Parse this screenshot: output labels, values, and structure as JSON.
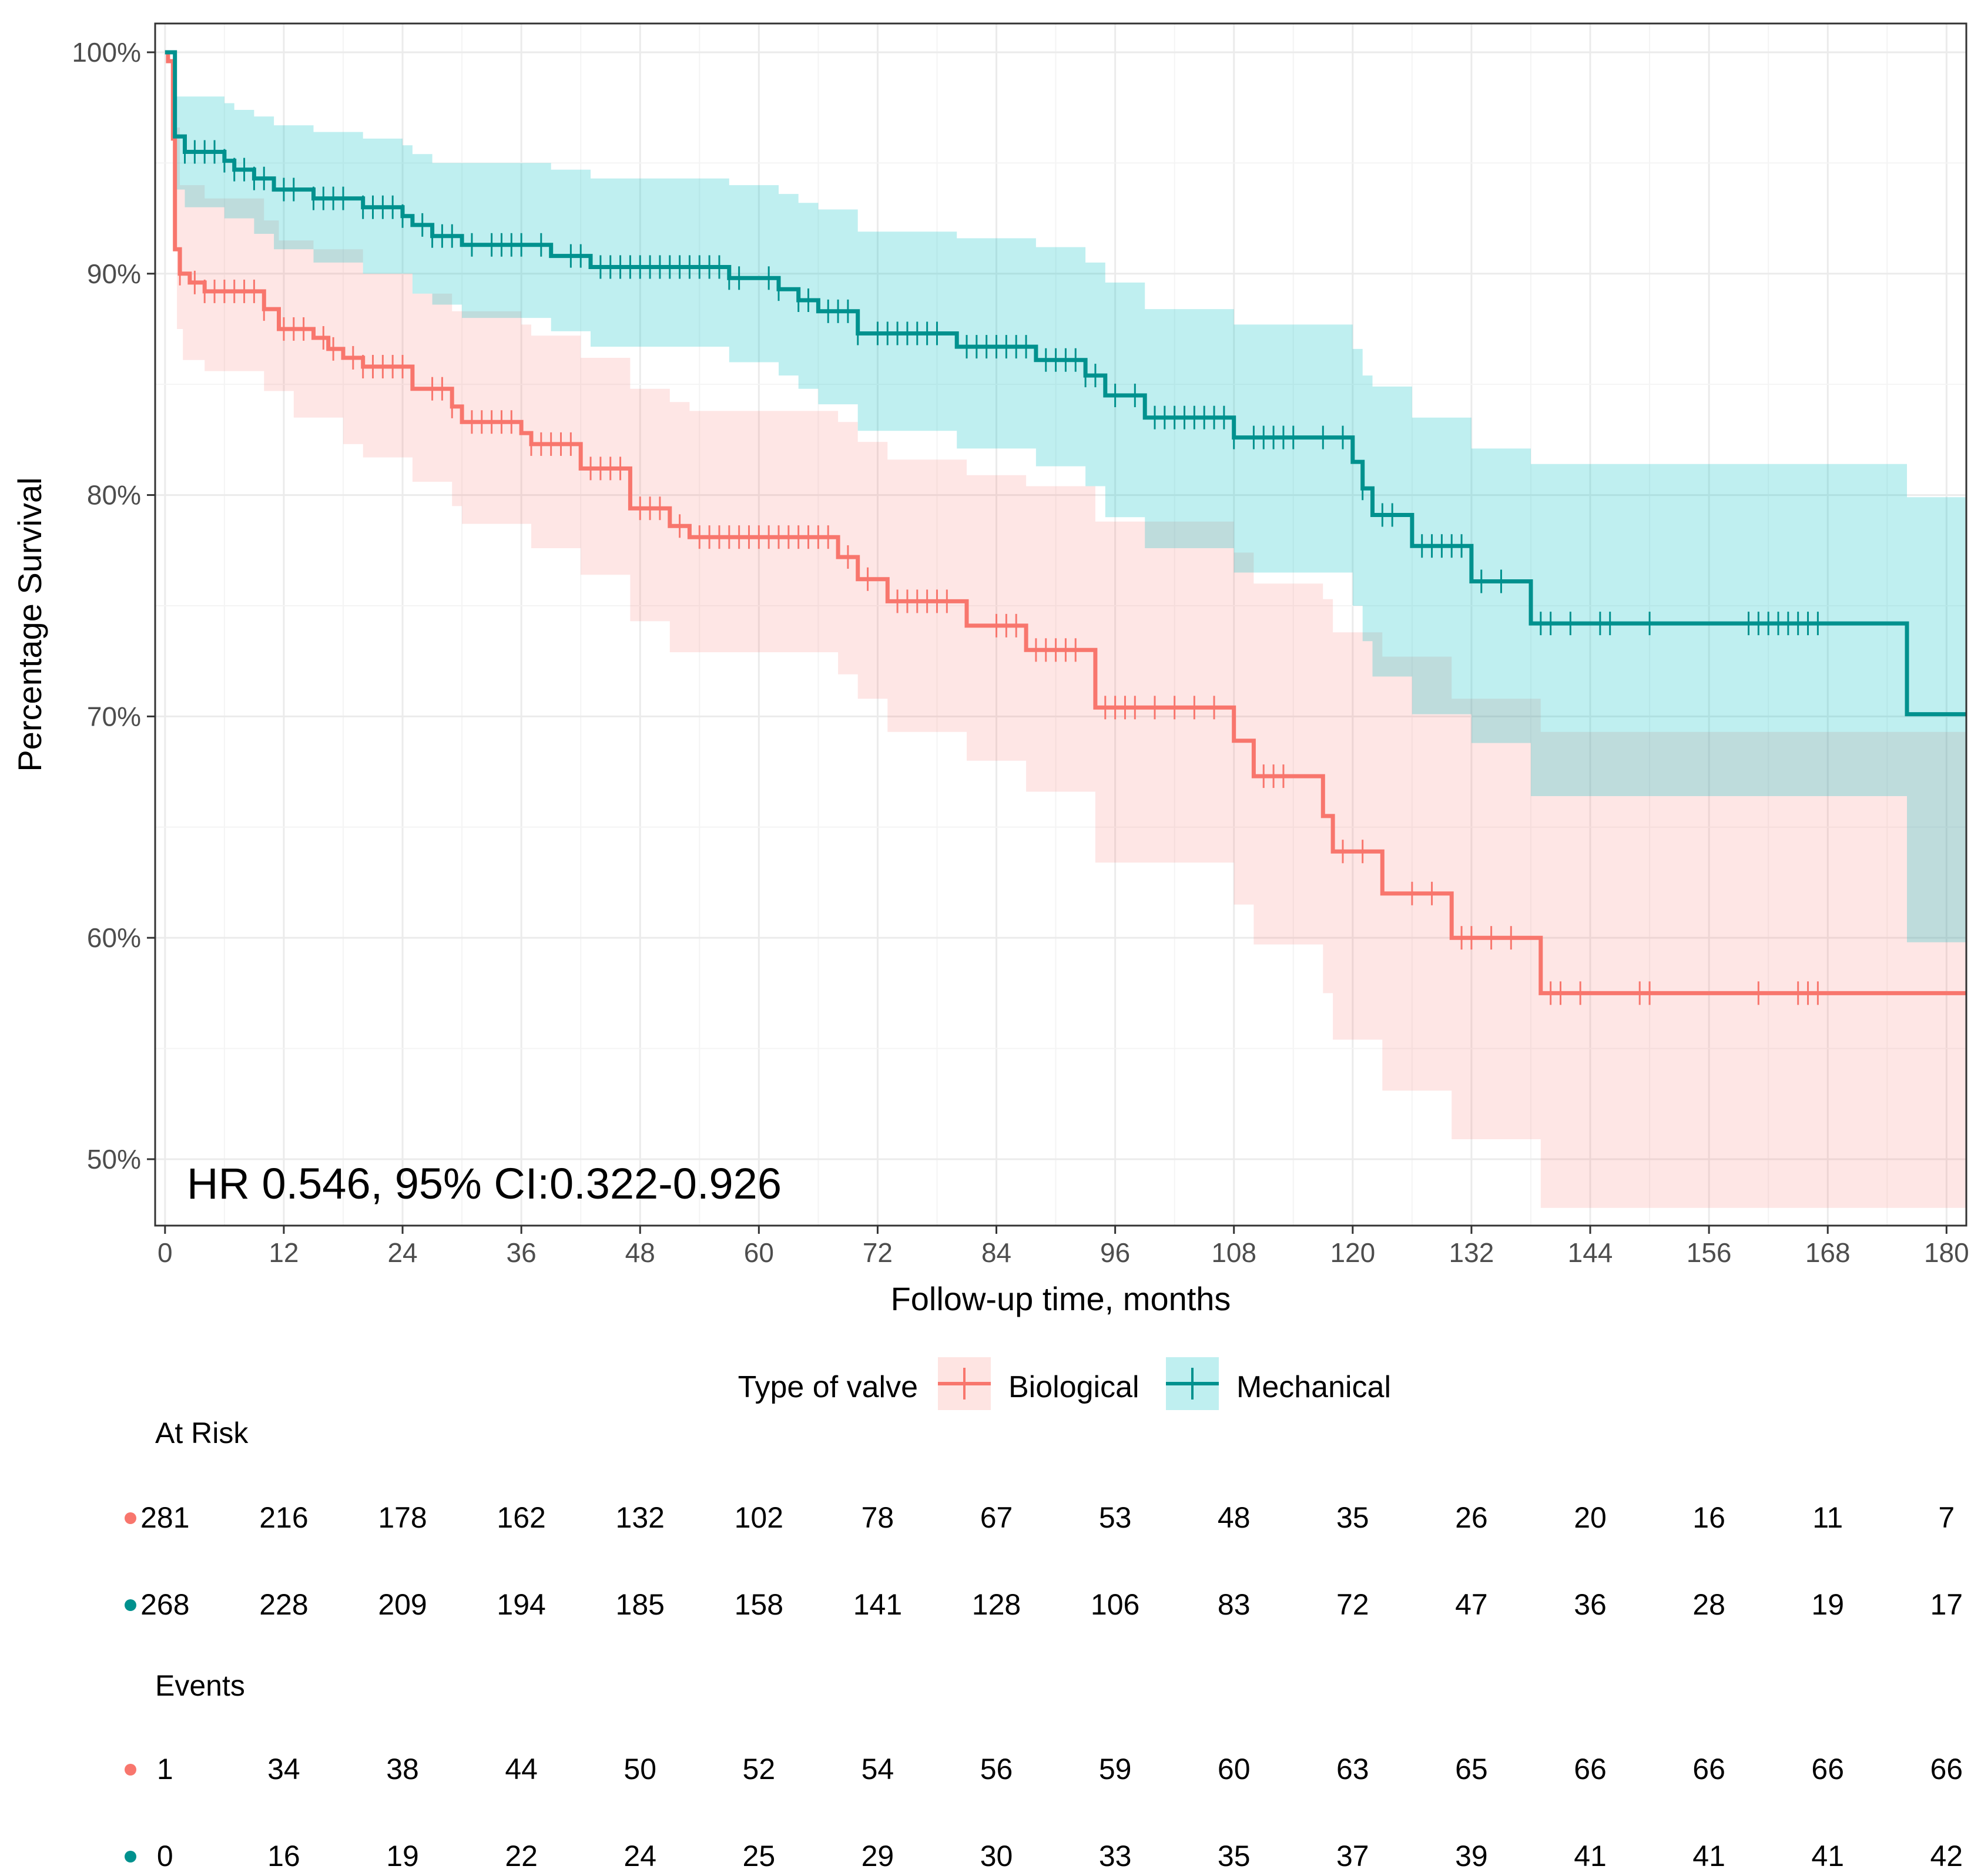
{
  "chart_data": {
    "type": "line",
    "subtype": "kaplan-meier survival curve with confidence bands",
    "xlabel": "Follow-up time, months",
    "ylabel": "Percentage Survival",
    "xlim": [
      -1,
      182
    ],
    "ylim": [
      47,
      101.3
    ],
    "x_ticks": [
      0,
      12,
      24,
      36,
      48,
      60,
      72,
      84,
      96,
      108,
      120,
      132,
      144,
      156,
      168,
      180
    ],
    "y_ticks": [
      50,
      60,
      70,
      80,
      90,
      100
    ],
    "y_tick_labels": [
      "50%",
      "60%",
      "70%",
      "80%",
      "90%",
      "100%"
    ],
    "grid": true,
    "annotation": "HR 0.546, 95% CI:0.322-0.926",
    "legend": {
      "title": "Type of valve",
      "position": "bottom"
    },
    "series": [
      {
        "name": "Biological",
        "color": "#F8766D",
        "band_color": "#F8766D",
        "steps": [
          [
            0,
            100
          ],
          [
            0.3,
            99.6
          ],
          [
            0.8,
            96.1
          ],
          [
            1,
            91.1
          ],
          [
            1.5,
            90.0
          ],
          [
            2.5,
            89.6
          ],
          [
            4,
            89.2
          ],
          [
            10,
            88.4
          ],
          [
            11.5,
            87.5
          ],
          [
            15,
            87.1
          ],
          [
            16.5,
            86.6
          ],
          [
            18,
            86.2
          ],
          [
            20,
            85.8
          ],
          [
            25,
            84.8
          ],
          [
            29,
            84.0
          ],
          [
            30,
            83.3
          ],
          [
            36,
            82.8
          ],
          [
            37,
            82.3
          ],
          [
            42,
            81.2
          ],
          [
            47,
            79.4
          ],
          [
            51,
            78.6
          ],
          [
            53,
            78.1
          ],
          [
            68,
            77.2
          ],
          [
            70,
            76.2
          ],
          [
            73,
            75.2
          ],
          [
            81,
            74.1
          ],
          [
            87,
            73.0
          ],
          [
            94,
            70.4
          ],
          [
            108,
            68.9
          ],
          [
            110,
            67.3
          ],
          [
            117,
            65.5
          ],
          [
            118,
            63.9
          ],
          [
            123,
            62.0
          ],
          [
            130,
            60.0
          ],
          [
            139,
            57.5
          ],
          [
            182,
            57.5
          ]
        ],
        "ci_lower": [
          [
            0,
            100
          ],
          [
            1,
            94.2
          ],
          [
            1.2,
            87.5
          ],
          [
            1.8,
            86.1
          ],
          [
            4,
            85.6
          ],
          [
            10,
            84.7
          ],
          [
            13,
            83.5
          ],
          [
            18,
            82.3
          ],
          [
            20,
            81.7
          ],
          [
            25,
            80.6
          ],
          [
            29,
            79.5
          ],
          [
            30,
            78.7
          ],
          [
            37,
            77.6
          ],
          [
            42,
            76.4
          ],
          [
            47,
            74.3
          ],
          [
            51,
            72.9
          ],
          [
            68,
            71.9
          ],
          [
            70,
            70.8
          ],
          [
            73,
            69.3
          ],
          [
            81,
            68.0
          ],
          [
            87,
            66.6
          ],
          [
            94,
            63.4
          ],
          [
            108,
            61.5
          ],
          [
            110,
            59.7
          ],
          [
            117,
            57.5
          ],
          [
            118,
            55.4
          ],
          [
            123,
            53.1
          ],
          [
            130,
            50.9
          ],
          [
            139,
            47.8
          ],
          [
            182,
            47.8
          ]
        ],
        "ci_upper": [
          [
            0,
            100
          ],
          [
            1,
            96.6
          ],
          [
            1.5,
            94.0
          ],
          [
            4,
            93.4
          ],
          [
            10,
            92.4
          ],
          [
            11.5,
            91.5
          ],
          [
            15,
            91.1
          ],
          [
            20,
            90.0
          ],
          [
            25,
            89.1
          ],
          [
            29,
            88.3
          ],
          [
            36,
            87.7
          ],
          [
            37,
            87.2
          ],
          [
            42,
            86.2
          ],
          [
            47,
            84.8
          ],
          [
            51,
            84.2
          ],
          [
            53,
            83.8
          ],
          [
            68,
            83.3
          ],
          [
            70,
            82.4
          ],
          [
            73,
            81.6
          ],
          [
            81,
            80.9
          ],
          [
            87,
            80.4
          ],
          [
            94,
            78.8
          ],
          [
            108,
            77.4
          ],
          [
            110,
            76.0
          ],
          [
            117,
            75.3
          ],
          [
            118,
            73.8
          ],
          [
            123,
            72.7
          ],
          [
            130,
            70.8
          ],
          [
            139,
            69.3
          ],
          [
            182,
            69.3
          ]
        ],
        "censor_times": [
          1.5,
          3,
          4,
          5,
          6,
          7,
          8,
          9,
          10,
          12,
          13,
          14,
          16,
          17,
          19,
          20,
          21,
          22,
          23,
          24,
          27,
          28,
          29,
          31,
          32,
          33,
          34,
          35,
          37,
          38,
          39,
          40,
          41,
          43,
          44,
          45,
          46,
          48,
          49,
          50,
          52,
          54,
          55,
          56,
          57,
          58,
          59,
          60,
          61,
          62,
          63,
          64,
          65,
          66,
          67,
          69,
          71,
          74,
          75,
          76,
          77,
          78,
          79,
          84,
          85,
          86,
          88,
          89,
          90,
          91,
          92,
          95,
          96,
          97,
          98,
          100,
          102,
          104,
          106,
          111,
          112,
          113,
          119,
          121,
          126,
          128,
          131,
          132,
          134,
          136,
          140,
          141,
          143,
          149,
          150,
          161,
          165,
          166,
          167
        ]
      },
      {
        "name": "Mechanical",
        "color": "#00918E",
        "band_color": "#00BFC4",
        "steps": [
          [
            0,
            100
          ],
          [
            1,
            96.2
          ],
          [
            2,
            95.5
          ],
          [
            6,
            95.1
          ],
          [
            7,
            94.7
          ],
          [
            9,
            94.3
          ],
          [
            11,
            93.8
          ],
          [
            15,
            93.4
          ],
          [
            20,
            93.0
          ],
          [
            24,
            92.6
          ],
          [
            25,
            92.2
          ],
          [
            27,
            91.7
          ],
          [
            30,
            91.3
          ],
          [
            39,
            90.8
          ],
          [
            43,
            90.3
          ],
          [
            57,
            89.8
          ],
          [
            62,
            89.3
          ],
          [
            64,
            88.8
          ],
          [
            66,
            88.3
          ],
          [
            70,
            87.3
          ],
          [
            80,
            86.7
          ],
          [
            88,
            86.1
          ],
          [
            93,
            85.4
          ],
          [
            95,
            84.5
          ],
          [
            99,
            83.5
          ],
          [
            108,
            82.6
          ],
          [
            120,
            81.5
          ],
          [
            121,
            80.3
          ],
          [
            122,
            79.1
          ],
          [
            126,
            77.7
          ],
          [
            132,
            76.1
          ],
          [
            138,
            74.2
          ],
          [
            176,
            70.1
          ],
          [
            182,
            70.1
          ]
        ],
        "ci_lower": [
          [
            0,
            100
          ],
          [
            1,
            93.8
          ],
          [
            2,
            93.0
          ],
          [
            6,
            92.5
          ],
          [
            9,
            91.8
          ],
          [
            11,
            91.1
          ],
          [
            15,
            90.5
          ],
          [
            20,
            90.0
          ],
          [
            25,
            89.1
          ],
          [
            27,
            88.6
          ],
          [
            30,
            88.0
          ],
          [
            39,
            87.4
          ],
          [
            43,
            86.7
          ],
          [
            57,
            86.0
          ],
          [
            62,
            85.4
          ],
          [
            64,
            84.8
          ],
          [
            66,
            84.1
          ],
          [
            70,
            82.9
          ],
          [
            80,
            82.1
          ],
          [
            88,
            81.3
          ],
          [
            93,
            80.4
          ],
          [
            95,
            79.0
          ],
          [
            99,
            77.6
          ],
          [
            108,
            76.5
          ],
          [
            120,
            75.0
          ],
          [
            121,
            73.4
          ],
          [
            122,
            71.8
          ],
          [
            126,
            70.1
          ],
          [
            132,
            68.8
          ],
          [
            138,
            66.4
          ],
          [
            176,
            59.8
          ],
          [
            182,
            59.8
          ]
        ],
        "ci_upper": [
          [
            0,
            100
          ],
          [
            1,
            98.0
          ],
          [
            6,
            97.7
          ],
          [
            7,
            97.4
          ],
          [
            9,
            97.1
          ],
          [
            11,
            96.7
          ],
          [
            15,
            96.4
          ],
          [
            20,
            96.1
          ],
          [
            24,
            95.8
          ],
          [
            25,
            95.4
          ],
          [
            27,
            95.0
          ],
          [
            39,
            94.7
          ],
          [
            43,
            94.3
          ],
          [
            57,
            94.0
          ],
          [
            62,
            93.6
          ],
          [
            64,
            93.2
          ],
          [
            66,
            92.9
          ],
          [
            70,
            91.9
          ],
          [
            80,
            91.6
          ],
          [
            88,
            91.2
          ],
          [
            93,
            90.5
          ],
          [
            95,
            89.6
          ],
          [
            99,
            88.4
          ],
          [
            108,
            87.7
          ],
          [
            120,
            86.6
          ],
          [
            121,
            85.4
          ],
          [
            122,
            84.9
          ],
          [
            126,
            83.5
          ],
          [
            132,
            82.1
          ],
          [
            138,
            81.4
          ],
          [
            176,
            79.9
          ],
          [
            182,
            79.9
          ]
        ],
        "censor_times": [
          2,
          3,
          4,
          5,
          6,
          7,
          8,
          9,
          10,
          12,
          13,
          15,
          16,
          17,
          18,
          20,
          21,
          22,
          23,
          24,
          26,
          27,
          28,
          29,
          31,
          33,
          34,
          35,
          36,
          38,
          41,
          42,
          44,
          45,
          46,
          47,
          48,
          49,
          50,
          51,
          52,
          53,
          54,
          55,
          56,
          57,
          58,
          61,
          62,
          64,
          65,
          67,
          68,
          69,
          70,
          72,
          73,
          74,
          75,
          76,
          77,
          78,
          81,
          82,
          83,
          84,
          85,
          86,
          87,
          89,
          90,
          91,
          92,
          93,
          94,
          96,
          98,
          100,
          101,
          102,
          103,
          104,
          105,
          106,
          107,
          108,
          110,
          111,
          112,
          113,
          114,
          117,
          119,
          121,
          123,
          124,
          127,
          128,
          129,
          130,
          131,
          133,
          135,
          139,
          140,
          142,
          145,
          146,
          150,
          160,
          161,
          162,
          163,
          164,
          165,
          166,
          167,
          182
        ]
      }
    ]
  },
  "risk_table": {
    "at_risk_title": "At Risk",
    "events_title": "Events",
    "times": [
      0,
      12,
      24,
      36,
      48,
      60,
      72,
      84,
      96,
      108,
      120,
      132,
      144,
      156,
      168,
      180
    ],
    "at_risk": {
      "Biological": [
        "281",
        "216",
        "178",
        "162",
        "132",
        "102",
        "78",
        "67",
        "53",
        "48",
        "35",
        "26",
        "20",
        "16",
        "11",
        "7"
      ],
      "Mechanical": [
        "268",
        "228",
        "209",
        "194",
        "185",
        "158",
        "141",
        "128",
        "106",
        "83",
        "72",
        "47",
        "36",
        "28",
        "19",
        "17"
      ]
    },
    "events": {
      "Biological": [
        "1",
        "34",
        "38",
        "44",
        "50",
        "52",
        "54",
        "56",
        "59",
        "60",
        "63",
        "65",
        "66",
        "66",
        "66",
        "66"
      ],
      "Mechanical": [
        "0",
        "16",
        "19",
        "22",
        "24",
        "25",
        "29",
        "30",
        "33",
        "35",
        "37",
        "39",
        "41",
        "41",
        "41",
        "42"
      ]
    }
  }
}
